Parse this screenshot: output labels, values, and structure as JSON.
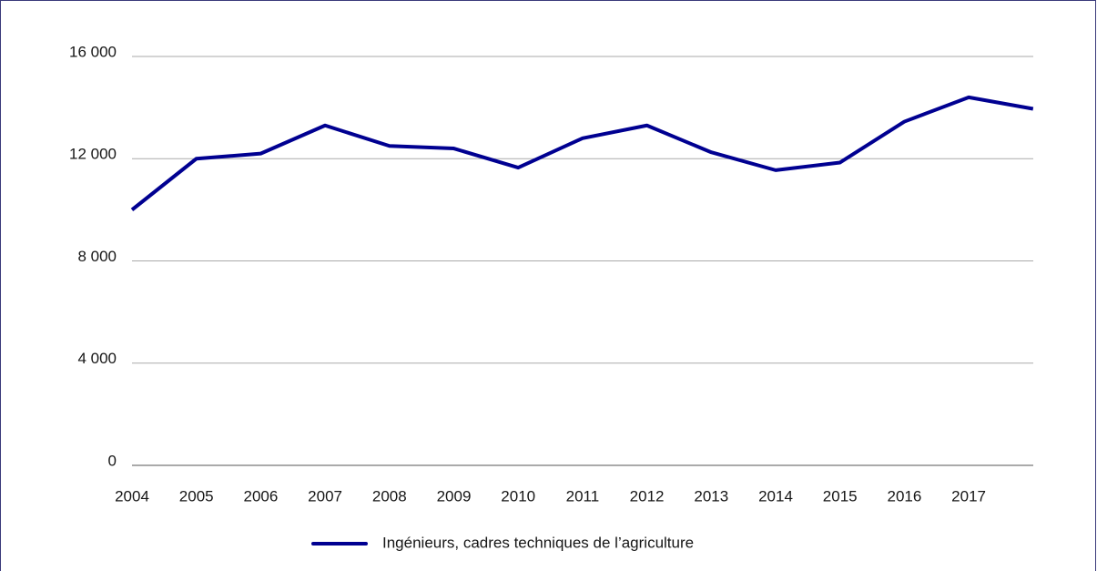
{
  "chart_data": {
    "type": "line",
    "categories": [
      "2004",
      "2005",
      "2006",
      "2007",
      "2008",
      "2009",
      "2010",
      "2011",
      "2012",
      "2013",
      "2014",
      "2015",
      "2016",
      "2017",
      null
    ],
    "series": [
      {
        "name": "Ingénieurs, cadres techniques de l’agriculture",
        "color": "#000091",
        "values": [
          10000,
          12000,
          12200,
          13300,
          12500,
          12400,
          11650,
          12800,
          13300,
          12250,
          11550,
          11850,
          13450,
          14400,
          13950
        ]
      }
    ],
    "ylim": [
      0,
      16000
    ],
    "yticks": [
      0,
      {
        "value": 4000,
        "label": "4 000"
      },
      {
        "value": 8000,
        "label": "8 000"
      },
      {
        "value": 12000,
        "label": "12 000"
      },
      {
        "value": 16000,
        "label": "16 000"
      }
    ],
    "grid": true,
    "legend": "bottom"
  }
}
